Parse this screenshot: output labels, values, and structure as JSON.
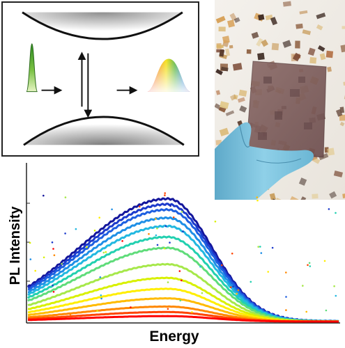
{
  "plot": {
    "ylabel": "PL Intensity",
    "xlabel": "Energy"
  },
  "colors": {
    "frame": "#222222",
    "arrow": "#111111",
    "band_shade": "#9a9a9a",
    "narrow_pulse": "#7ac143",
    "glove": "#7fc3dd",
    "film": "#7b5a59",
    "curve_palette": [
      "#ff0000",
      "#ff4400",
      "#ff8800",
      "#ffbb00",
      "#ffee00",
      "#d8f000",
      "#a6e84a",
      "#5fdc7a",
      "#22d0b0",
      "#22b8e0",
      "#1f8fe6",
      "#1e5fe0",
      "#1c3acc",
      "#14169c"
    ]
  },
  "icons": [
    "valence-band-icon",
    "conduction-band-icon",
    "narrow-emission-icon",
    "broad-emission-icon",
    "excitation-arrow-icon",
    "emission-arrow-icon"
  ],
  "chart_data": {
    "type": "line",
    "xlabel": "Energy",
    "ylabel": "PL Intensity",
    "x_range": [
      0,
      1
    ],
    "y_range": [
      0,
      1
    ],
    "grid": false,
    "legend": "none",
    "series": [
      {
        "peak": 0.9,
        "width_left": 0.4,
        "width_right": 0.2
      },
      {
        "peak": 0.86,
        "width_left": 0.4,
        "width_right": 0.2
      },
      {
        "peak": 0.82,
        "width_left": 0.4,
        "width_right": 0.2
      },
      {
        "peak": 0.76,
        "width_left": 0.4,
        "width_right": 0.2
      },
      {
        "peak": 0.7,
        "width_left": 0.4,
        "width_right": 0.2
      },
      {
        "peak": 0.62,
        "width_left": 0.4,
        "width_right": 0.2
      },
      {
        "peak": 0.54,
        "width_left": 0.4,
        "width_right": 0.2
      },
      {
        "peak": 0.42,
        "width_left": 0.4,
        "width_right": 0.2
      },
      {
        "peak": 0.32,
        "width_left": 0.4,
        "width_right": 0.2
      },
      {
        "peak": 0.24,
        "width_left": 0.4,
        "width_right": 0.2
      },
      {
        "peak": 0.17,
        "width_left": 0.4,
        "width_right": 0.2
      },
      {
        "peak": 0.11,
        "width_left": 0.4,
        "width_right": 0.2
      },
      {
        "peak": 0.07,
        "width_left": 0.4,
        "width_right": 0.2
      },
      {
        "peak": 0.04,
        "width_left": 0.4,
        "width_right": 0.2
      }
    ]
  }
}
